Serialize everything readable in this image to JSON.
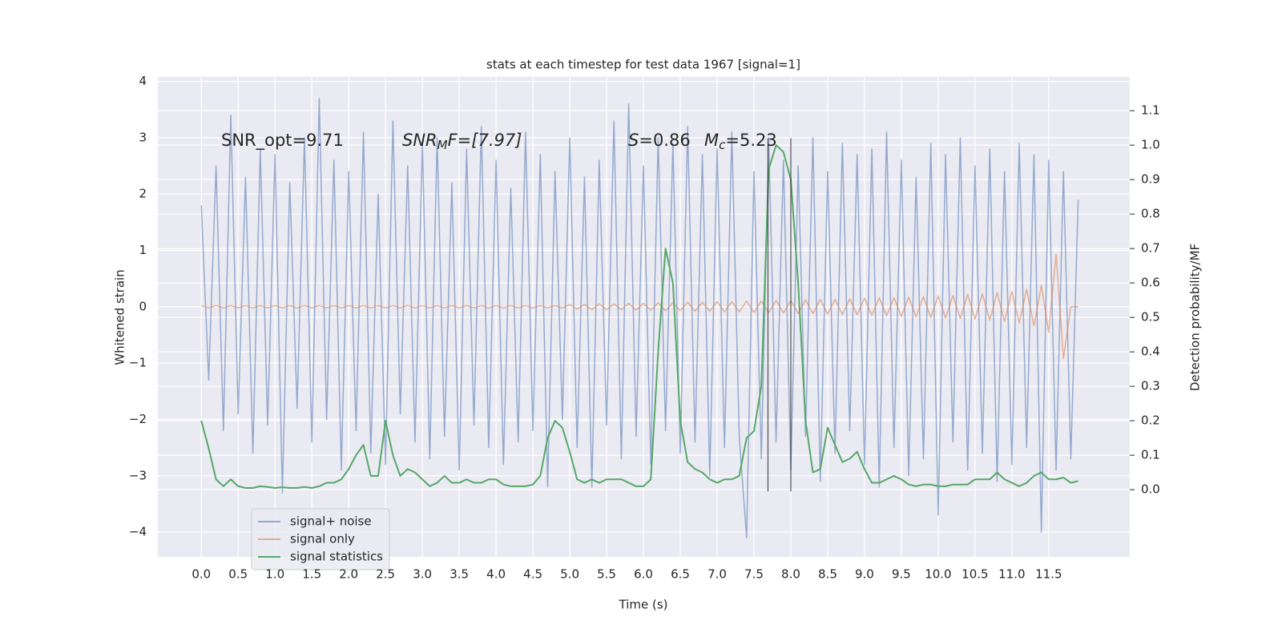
{
  "chart_data": {
    "type": "line",
    "title": "stats at each timestep for test data 1967 [signal=1]",
    "xlabel": "Time (s)",
    "ylabel": "Whitened strain",
    "y2label": "Detection probability/MF",
    "annotations": {
      "snr_opt": "SNR_opt=9.71",
      "snr_mf": [
        "SNR",
        "M",
        "F=[7.97]"
      ],
      "s": [
        "S",
        "=0.86"
      ],
      "mc": [
        "M",
        "c",
        "=5.23"
      ]
    },
    "vlines": [
      7.69,
      8.0
    ],
    "xlim": [
      -0.59,
      12.6
    ],
    "ylim": [
      -4.44,
      4.08
    ],
    "y2lim": [
      -0.195,
      1.198
    ],
    "xticks": [
      {
        "value": 0,
        "label": "0.0"
      },
      {
        "value": 0.5,
        "label": "0.5"
      },
      {
        "value": 1,
        "label": "1.0"
      },
      {
        "value": 1.5,
        "label": "1.5"
      },
      {
        "value": 2,
        "label": "2.0"
      },
      {
        "value": 2.5,
        "label": "2.5"
      },
      {
        "value": 3,
        "label": "3.0"
      },
      {
        "value": 3.5,
        "label": "3.5"
      },
      {
        "value": 4,
        "label": "4.0"
      },
      {
        "value": 4.5,
        "label": "4.5"
      },
      {
        "value": 5,
        "label": "5.0"
      },
      {
        "value": 5.5,
        "label": "5.5"
      },
      {
        "value": 6,
        "label": "6.0"
      },
      {
        "value": 6.5,
        "label": "6.5"
      },
      {
        "value": 7,
        "label": "7.0"
      },
      {
        "value": 7.5,
        "label": "7.5"
      },
      {
        "value": 8,
        "label": "8.0"
      },
      {
        "value": 8.5,
        "label": "8.5"
      },
      {
        "value": 9,
        "label": "9.0"
      },
      {
        "value": 9.5,
        "label": "9.5"
      },
      {
        "value": 10,
        "label": "10.0"
      },
      {
        "value": 10.5,
        "label": "10.5"
      },
      {
        "value": 11,
        "label": "11.0"
      },
      {
        "value": 11.5,
        "label": "11.5"
      }
    ],
    "yticks": [
      {
        "value": -4,
        "label": "−4"
      },
      {
        "value": -3,
        "label": "−3"
      },
      {
        "value": -2,
        "label": "−2"
      },
      {
        "value": -1,
        "label": "−1"
      },
      0,
      1,
      2,
      3,
      4
    ],
    "y2ticks": [
      {
        "value": 0,
        "label": "0.0"
      },
      {
        "value": 0.1,
        "label": "0.1"
      },
      {
        "value": 0.2,
        "label": "0.2"
      },
      {
        "value": 0.3,
        "label": "0.3"
      },
      {
        "value": 0.4,
        "label": "0.4"
      },
      {
        "value": 0.5,
        "label": "0.5"
      },
      {
        "value": 0.6,
        "label": "0.6"
      },
      {
        "value": 0.7,
        "label": "0.7"
      },
      {
        "value": 0.8,
        "label": "0.8"
      },
      {
        "value": 0.9,
        "label": "0.9"
      },
      {
        "value": 1,
        "label": "1.0"
      },
      {
        "value": 1.1,
        "label": "1.1"
      }
    ],
    "grid": true,
    "legend": "lower left",
    "x": [
      0.0,
      0.1,
      0.2,
      0.3,
      0.4,
      0.5,
      0.6,
      0.7,
      0.8,
      0.9,
      1.0,
      1.1,
      1.2,
      1.3,
      1.4,
      1.5,
      1.6,
      1.7,
      1.8,
      1.9,
      2.0,
      2.1,
      2.2,
      2.3,
      2.4,
      2.5,
      2.6,
      2.7,
      2.8,
      2.9,
      3.0,
      3.1,
      3.2,
      3.3,
      3.4,
      3.5,
      3.6,
      3.7,
      3.8,
      3.9,
      4.0,
      4.1,
      4.2,
      4.3,
      4.4,
      4.5,
      4.6,
      4.7,
      4.8,
      4.9,
      5.0,
      5.1,
      5.2,
      5.3,
      5.4,
      5.5,
      5.6,
      5.7,
      5.8,
      5.9,
      6.0,
      6.1,
      6.2,
      6.3,
      6.4,
      6.5,
      6.6,
      6.7,
      6.8,
      6.9,
      7.0,
      7.1,
      7.2,
      7.3,
      7.4,
      7.5,
      7.6,
      7.7,
      7.8,
      7.9,
      8.0,
      8.1,
      8.2,
      8.3,
      8.4,
      8.5,
      8.6,
      8.7,
      8.8,
      8.9,
      9.0,
      9.1,
      9.2,
      9.3,
      9.4,
      9.5,
      9.6,
      9.7,
      9.8,
      9.9,
      10.0,
      10.1,
      10.2,
      10.3,
      10.4,
      10.5,
      10.6,
      10.7,
      10.8,
      10.9,
      11.0,
      11.1,
      11.2,
      11.3,
      11.4,
      11.5,
      11.6,
      11.7,
      11.8,
      11.9
    ],
    "series": [
      {
        "name": "signal+ noise",
        "color": "#4c72b0",
        "alpha": 0.55,
        "values": [
          1.8,
          -1.3,
          2.5,
          -2.2,
          3.4,
          -1.9,
          2.3,
          -2.6,
          2.8,
          -2.1,
          2.7,
          -3.3,
          2.2,
          -1.8,
          3.0,
          -2.4,
          3.7,
          -2.0,
          2.6,
          -2.9,
          2.4,
          -2.2,
          3.1,
          -2.6,
          2.0,
          -2.8,
          3.3,
          -1.9,
          2.5,
          -2.4,
          2.9,
          -2.7,
          3.0,
          -2.3,
          2.2,
          -2.9,
          2.8,
          -2.1,
          3.2,
          -2.5,
          2.6,
          -2.8,
          2.1,
          -2.4,
          3.1,
          -2.2,
          2.7,
          -3.2,
          2.4,
          -2.0,
          3.0,
          -2.5,
          2.3,
          -3.2,
          2.6,
          -2.1,
          3.3,
          -2.7,
          3.6,
          -2.3,
          2.5,
          -2.8,
          3.0,
          -2.2,
          2.9,
          -2.6,
          3.2,
          -2.4,
          2.7,
          -3.0,
          2.8,
          -2.5,
          3.1,
          -2.3,
          -4.1,
          2.4,
          -2.7,
          3.0,
          -2.4,
          2.6,
          -2.9,
          2.5,
          -2.3,
          3.0,
          -3.1,
          2.4,
          -2.6,
          2.9,
          -2.2,
          2.7,
          -2.8,
          2.8,
          -3.2,
          3.1,
          -2.5,
          2.6,
          -3.0,
          2.3,
          -2.7,
          2.9,
          -3.7,
          2.7,
          -2.4,
          3.0,
          -2.9,
          2.5,
          -2.6,
          2.8,
          -3.1,
          2.4,
          -2.8,
          2.9,
          -2.5,
          2.7,
          -4.0,
          2.6,
          -2.9,
          2.4,
          -2.7,
          1.9
        ]
      },
      {
        "name": "signal only",
        "color": "#dd8452",
        "alpha": 0.6,
        "values": [
          0.02,
          -0.02,
          0.02,
          -0.02,
          0.02,
          -0.02,
          0.02,
          -0.02,
          0.02,
          -0.02,
          0.02,
          -0.02,
          0.02,
          -0.02,
          0.02,
          -0.02,
          0.02,
          -0.02,
          0.02,
          -0.02,
          0.02,
          -0.02,
          0.02,
          -0.02,
          0.02,
          -0.02,
          0.02,
          -0.02,
          0.02,
          -0.02,
          0.02,
          -0.02,
          0.02,
          -0.02,
          0.02,
          -0.02,
          0.02,
          -0.02,
          0.02,
          -0.02,
          0.02,
          -0.02,
          0.02,
          -0.02,
          0.02,
          -0.02,
          0.02,
          -0.02,
          0.02,
          -0.02,
          0.04,
          -0.04,
          0.04,
          -0.05,
          0.05,
          -0.05,
          0.05,
          -0.05,
          0.06,
          -0.06,
          0.06,
          -0.06,
          0.07,
          -0.07,
          0.07,
          -0.07,
          0.08,
          -0.08,
          0.08,
          -0.08,
          0.09,
          -0.09,
          0.09,
          -0.09,
          0.1,
          -0.1,
          0.1,
          -0.1,
          0.11,
          -0.11,
          0.11,
          -0.12,
          0.12,
          -0.12,
          0.13,
          -0.13,
          0.13,
          -0.14,
          0.14,
          -0.14,
          0.15,
          -0.15,
          0.16,
          -0.16,
          0.16,
          -0.17,
          0.17,
          -0.18,
          0.18,
          -0.19,
          0.19,
          -0.2,
          0.2,
          -0.21,
          0.22,
          -0.22,
          0.23,
          -0.24,
          0.25,
          -0.26,
          0.27,
          -0.29,
          0.31,
          -0.34,
          0.38,
          -0.45,
          0.93,
          -0.92,
          0,
          0
        ]
      },
      {
        "name": "signal statistics",
        "color": "#55a868",
        "axis": "y2",
        "values": [
          0.2,
          0.12,
          0.03,
          0.01,
          0.03,
          0.01,
          0.005,
          0.005,
          0.01,
          0.008,
          0.005,
          0.007,
          0.005,
          0.005,
          0.008,
          0.005,
          0.01,
          0.02,
          0.02,
          0.03,
          0.06,
          0.1,
          0.13,
          0.04,
          0.04,
          0.2,
          0.1,
          0.04,
          0.06,
          0.05,
          0.03,
          0.01,
          0.02,
          0.04,
          0.02,
          0.02,
          0.03,
          0.02,
          0.02,
          0.03,
          0.03,
          0.015,
          0.01,
          0.01,
          0.01,
          0.015,
          0.04,
          0.15,
          0.2,
          0.18,
          0.11,
          0.03,
          0.02,
          0.03,
          0.02,
          0.03,
          0.03,
          0.03,
          0.02,
          0.01,
          0.01,
          0.03,
          0.4,
          0.7,
          0.6,
          0.2,
          0.08,
          0.06,
          0.05,
          0.03,
          0.02,
          0.03,
          0.03,
          0.04,
          0.15,
          0.17,
          0.3,
          0.93,
          1.0,
          0.98,
          0.9,
          0.6,
          0.2,
          0.05,
          0.06,
          0.18,
          0.13,
          0.08,
          0.09,
          0.11,
          0.06,
          0.02,
          0.02,
          0.03,
          0.04,
          0.03,
          0.015,
          0.01,
          0.015,
          0.015,
          0.01,
          0.01,
          0.015,
          0.015,
          0.015,
          0.03,
          0.03,
          0.03,
          0.05,
          0.03,
          0.02,
          0.01,
          0.02,
          0.04,
          0.05,
          0.03,
          0.03,
          0.035,
          0.02,
          0.025
        ]
      }
    ]
  }
}
